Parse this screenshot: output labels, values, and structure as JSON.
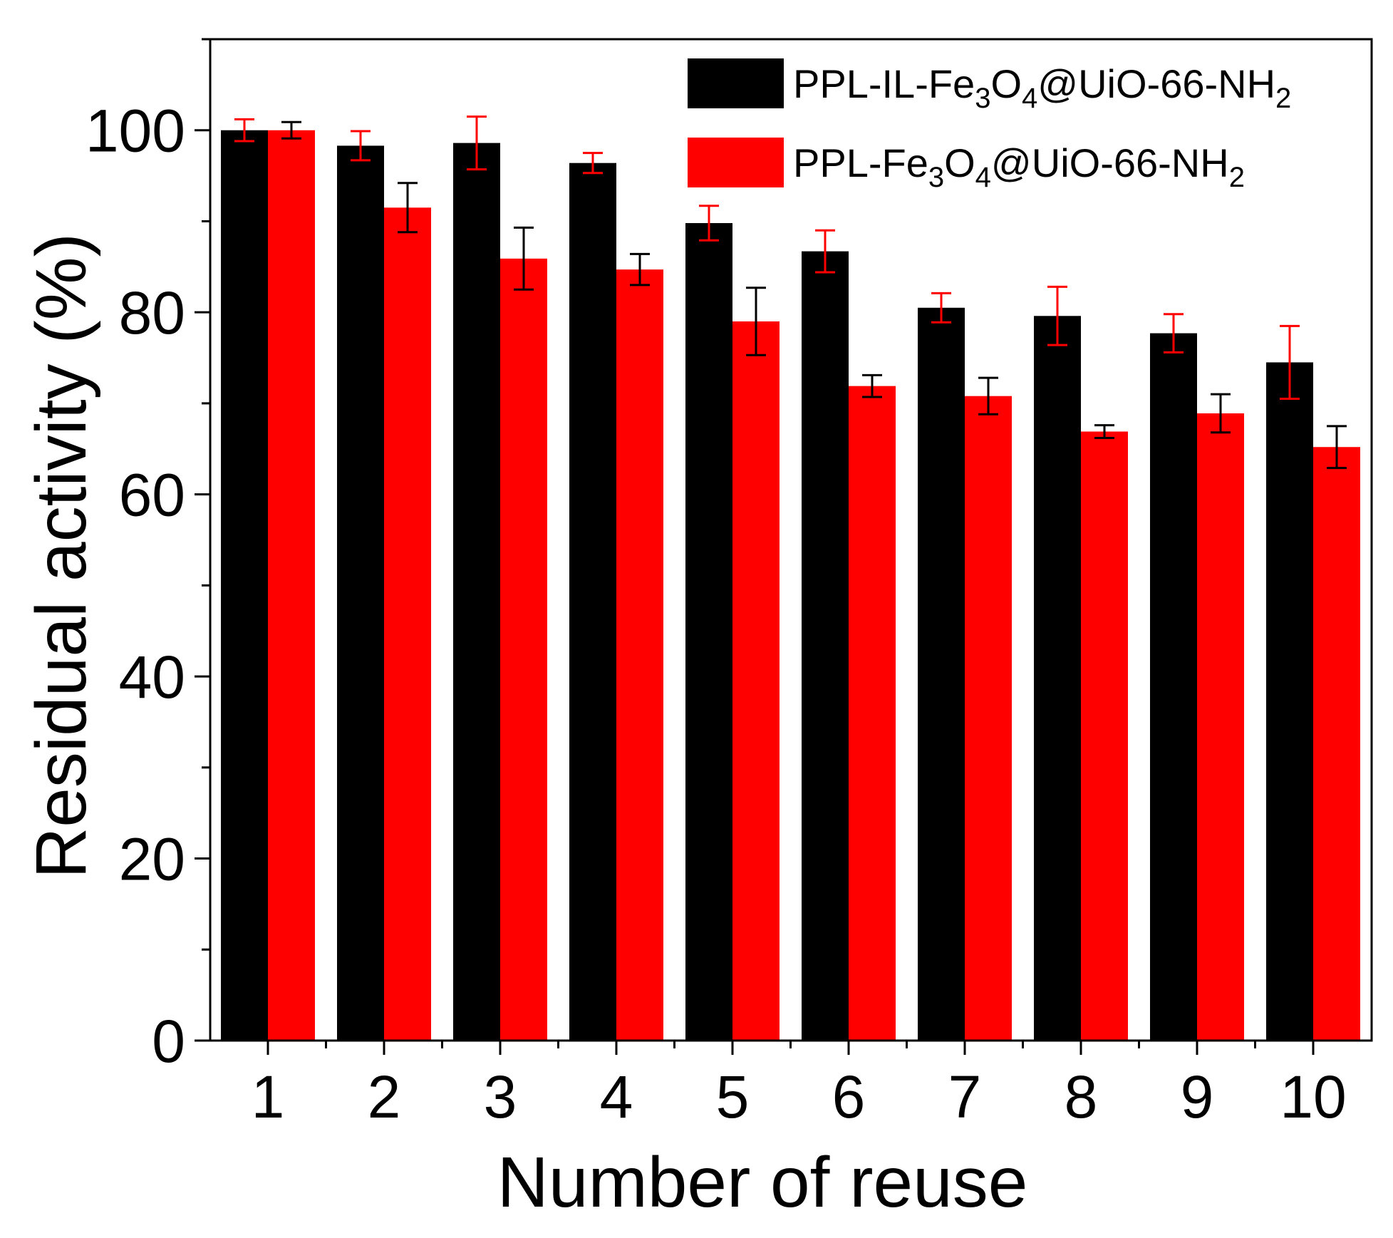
{
  "chart_data": {
    "type": "bar",
    "xlabel": "Number of reuse",
    "ylabel": "Residual activity (%)",
    "categories": [
      "1",
      "2",
      "3",
      "4",
      "5",
      "6",
      "7",
      "8",
      "9",
      "10"
    ],
    "ylim": [
      0,
      110
    ],
    "yticks": [
      "0",
      "20",
      "40",
      "60",
      "80",
      "100"
    ],
    "y_minor_step": 10,
    "grid": false,
    "legend_position": "top-right",
    "series": [
      {
        "name": "PPL-IL-Fe3O4@UiO-66-NH2",
        "name_parts": [
          {
            "text": "PPL-IL-Fe",
            "sub": false
          },
          {
            "text": "3",
            "sub": true
          },
          {
            "text": "O",
            "sub": false
          },
          {
            "text": "4",
            "sub": true
          },
          {
            "text": "@UiO-66-NH",
            "sub": false
          },
          {
            "text": "2",
            "sub": true
          }
        ],
        "color": "#000000",
        "error_color": "#ff0000",
        "values": [
          100,
          98.3,
          98.6,
          96.4,
          89.8,
          86.7,
          80.5,
          79.6,
          77.7,
          74.5
        ],
        "errors": [
          1.2,
          1.6,
          2.9,
          1.1,
          1.9,
          2.3,
          1.6,
          3.2,
          2.1,
          4.0
        ]
      },
      {
        "name": "PPL-Fe3O4@UiO-66-NH2",
        "name_parts": [
          {
            "text": "PPL-Fe",
            "sub": false
          },
          {
            "text": "3",
            "sub": true
          },
          {
            "text": "O",
            "sub": false
          },
          {
            "text": "4",
            "sub": true
          },
          {
            "text": "@UiO-66-NH",
            "sub": false
          },
          {
            "text": "2",
            "sub": true
          }
        ],
        "color": "#ff0000",
        "error_color": "#000000",
        "values": [
          100,
          91.5,
          85.9,
          84.7,
          79.0,
          71.9,
          70.8,
          66.9,
          68.9,
          65.2
        ],
        "errors": [
          0.9,
          2.7,
          3.4,
          1.7,
          3.7,
          1.2,
          2.0,
          0.7,
          2.1,
          2.3
        ]
      }
    ]
  }
}
